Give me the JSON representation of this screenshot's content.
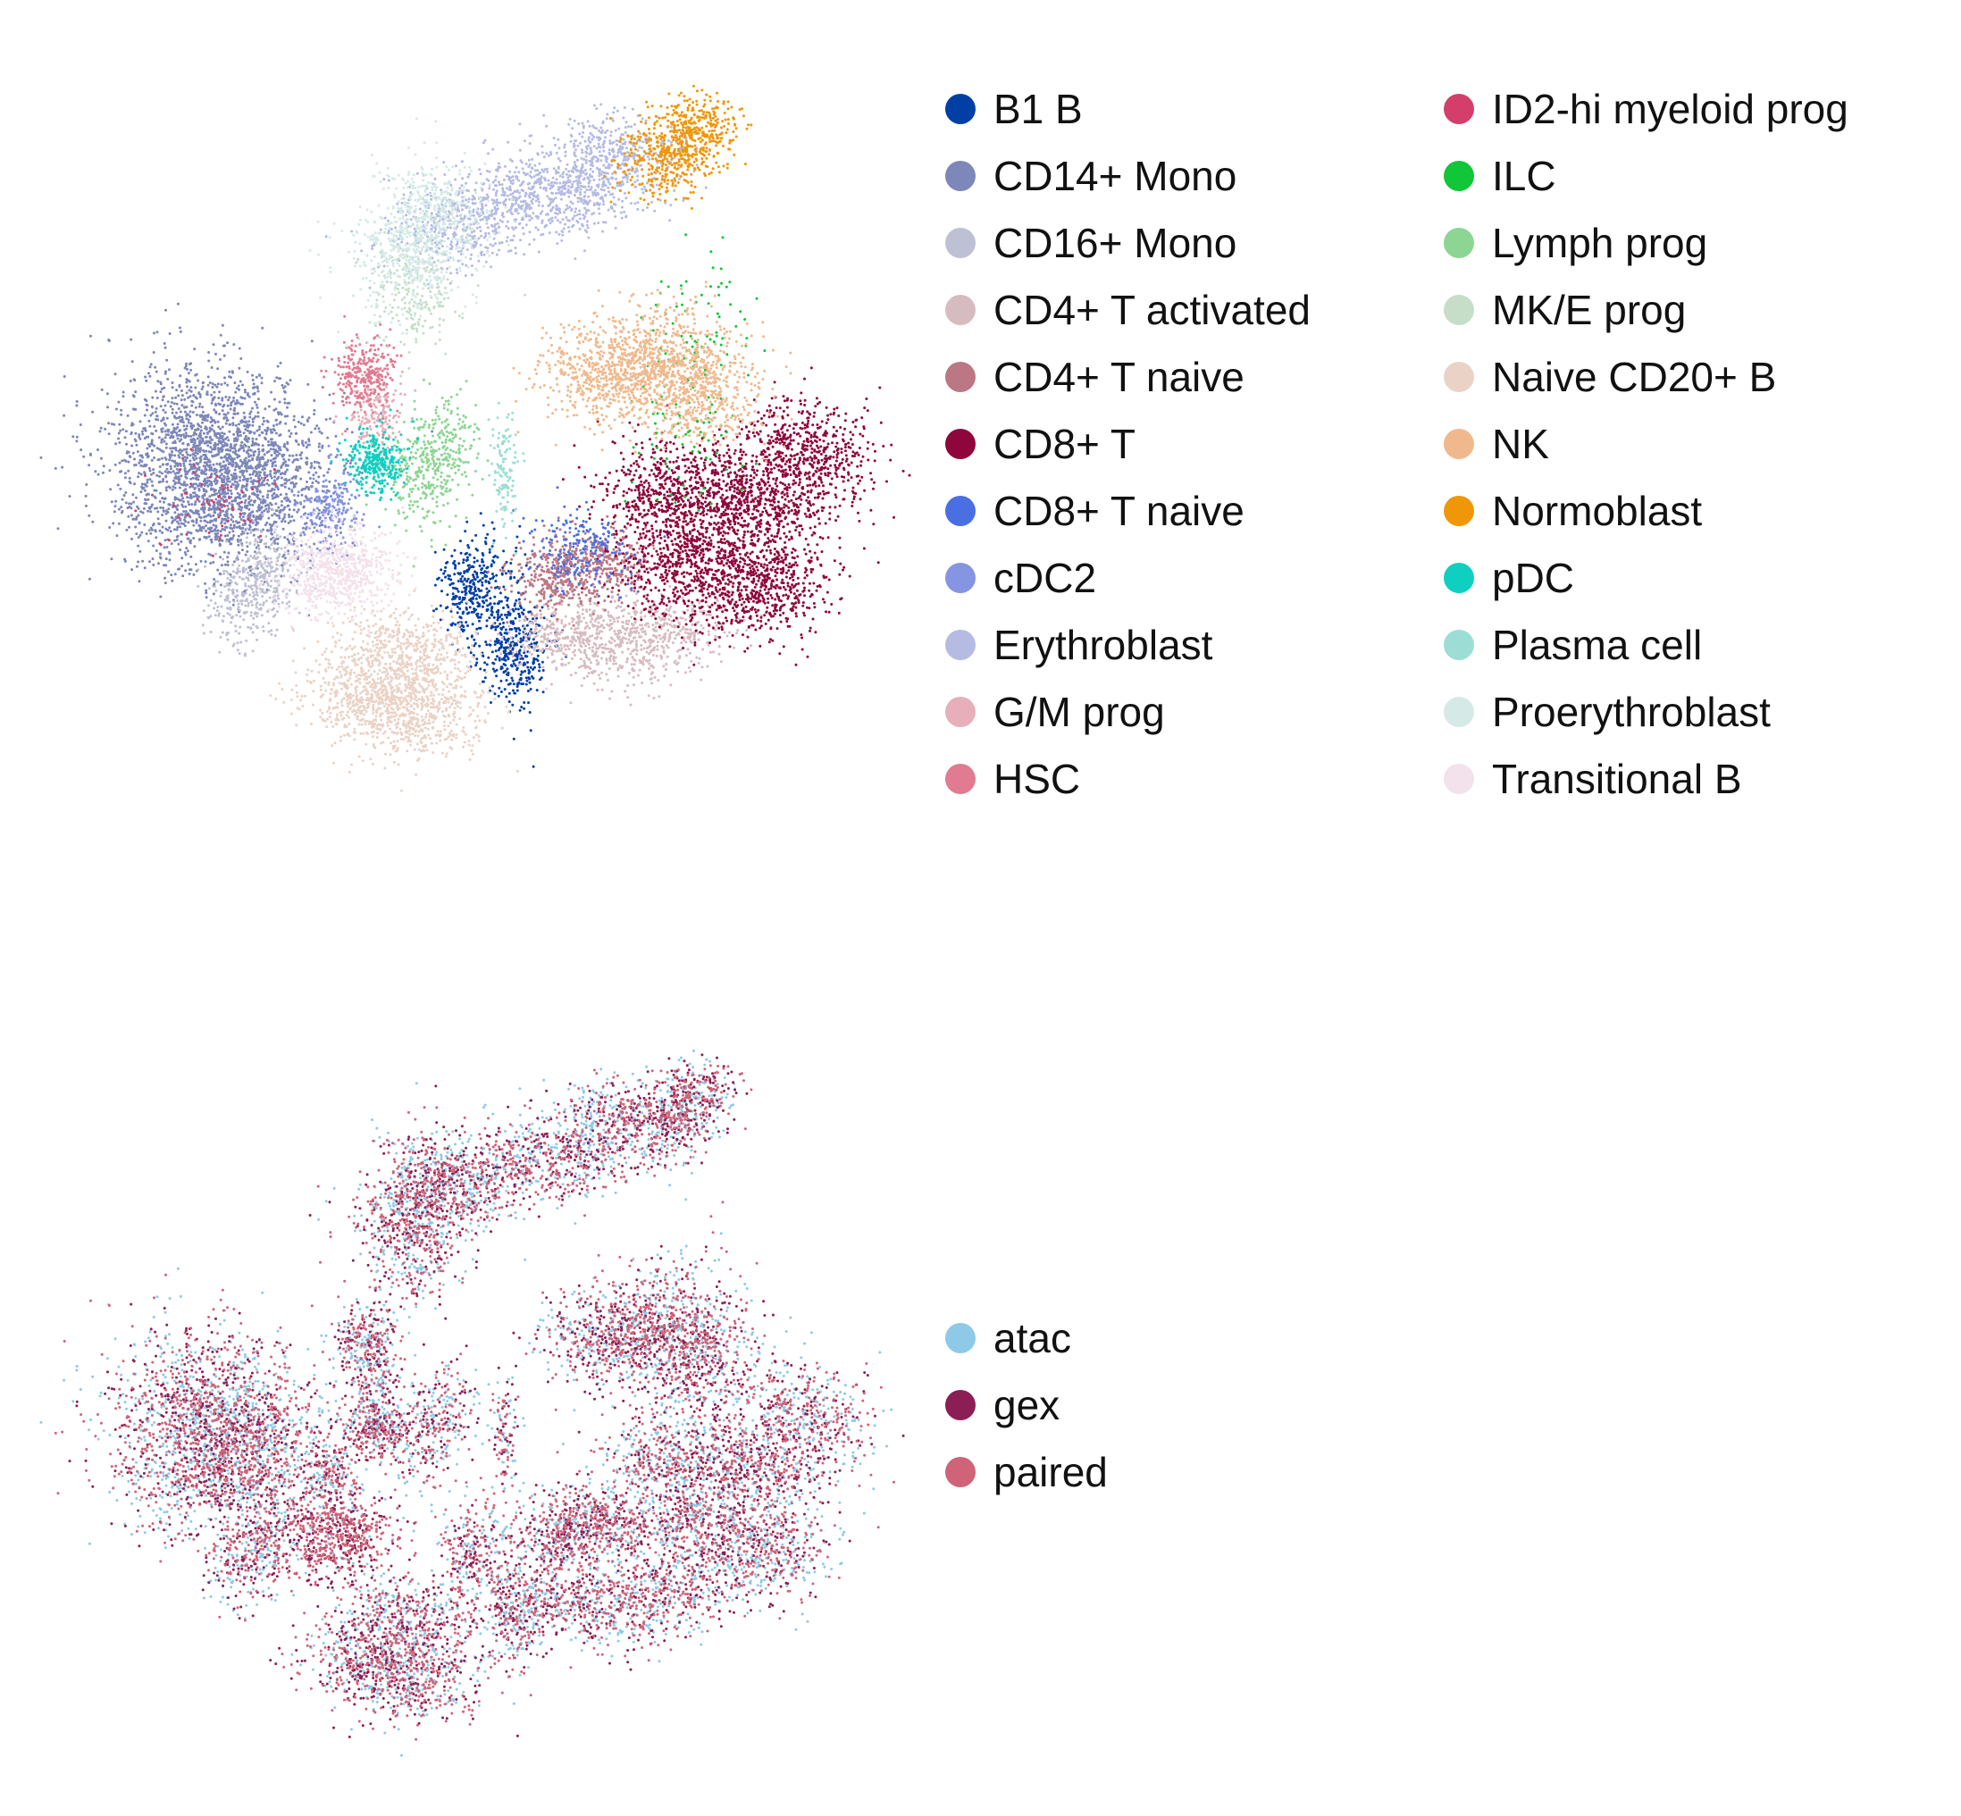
{
  "chart_data": [
    {
      "type": "scatter",
      "title": "",
      "xlabel": "",
      "ylabel": "",
      "grid": false,
      "axes_visible": false,
      "legend_placement": "right, two columns",
      "series": [
        {
          "name": "B1 B",
          "color": "#023fa5",
          "centers": [
            [
              6.55,
              5.25
            ],
            [
              5.95,
              4.35
            ]
          ],
          "spread": [
            0.28,
            0.42
          ],
          "count": 700
        },
        {
          "name": "CD14+ Mono",
          "color": "#7d87b9",
          "centers": [
            [
              1.7,
              1.8
            ],
            [
              2.3,
              2.5
            ],
            [
              1.9,
              3.0
            ]
          ],
          "spread": [
            0.8,
            0.6
          ],
          "count": 2600
        },
        {
          "name": "CD16+ Mono",
          "color": "#bec1d4",
          "centers": [
            [
              2.7,
              4.0
            ],
            [
              2.3,
              4.5
            ]
          ],
          "spread": [
            0.3,
            0.35
          ],
          "count": 420
        },
        {
          "name": "CD4+ T activated",
          "color": "#d6bcc0",
          "centers": [
            [
              7.4,
              5.0
            ],
            [
              8.2,
              5.3
            ],
            [
              9.0,
              4.9
            ]
          ],
          "spread": [
            0.5,
            0.3
          ],
          "count": 900
        },
        {
          "name": "CD4+ T naive",
          "color": "#bb7784",
          "centers": [
            [
              7.2,
              4.1
            ],
            [
              8.0,
              3.9
            ]
          ],
          "spread": [
            0.35,
            0.3
          ],
          "count": 620
        },
        {
          "name": "CD8+ T",
          "color": "#8e063b",
          "centers": [
            [
              9.0,
              2.8
            ],
            [
              10.2,
              3.0
            ],
            [
              11.1,
              2.2
            ],
            [
              10.4,
              4.2
            ],
            [
              9.3,
              4.0
            ]
          ],
          "spread": [
            0.55,
            0.45
          ],
          "count": 3000
        },
        {
          "name": "CD8+ T naive",
          "color": "#4a6fe3",
          "centers": [
            [
              7.6,
              3.7
            ]
          ],
          "spread": [
            0.4,
            0.3
          ],
          "count": 200
        },
        {
          "name": "cDC2",
          "color": "#8595e1",
          "centers": [
            [
              3.7,
              3.1
            ]
          ],
          "spread": [
            0.25,
            0.35
          ],
          "count": 220
        },
        {
          "name": "Erythroblast",
          "color": "#b5bbe3",
          "centers": [
            [
              6.5,
              -1.9
            ],
            [
              7.5,
              -2.1
            ],
            [
              8.2,
              -2.6
            ],
            [
              5.6,
              -1.4
            ]
          ],
          "spread": [
            0.55,
            0.35
          ],
          "count": 1500
        },
        {
          "name": "G/M prog",
          "color": "#e6afb9",
          "centers": [
            [
              4.4,
              1.5
            ]
          ],
          "spread": [
            0.2,
            0.3
          ],
          "count": 180
        },
        {
          "name": "HSC",
          "color": "#e07b91",
          "centers": [
            [
              4.2,
              0.9
            ]
          ],
          "spread": [
            0.25,
            0.3
          ],
          "count": 300
        },
        {
          "name": "ID2-hi myeloid prog",
          "color": "#d33f6a",
          "centers": [
            [
              1.9,
              2.9
            ]
          ],
          "spread": [
            0.5,
            0.4
          ],
          "count": 60
        },
        {
          "name": "ILC",
          "color": "#11c638",
          "centers": [
            [
              9.5,
              0.2
            ],
            [
              9.2,
              1.6
            ]
          ],
          "spread": [
            0.4,
            0.7
          ],
          "count": 160
        },
        {
          "name": "Lymph prog",
          "color": "#8dd593",
          "centers": [
            [
              5.1,
              2.6
            ],
            [
              5.5,
              2.0
            ]
          ],
          "spread": [
            0.3,
            0.4
          ],
          "count": 420
        },
        {
          "name": "MK/E prog",
          "color": "#c6dec7",
          "centers": [
            [
              5.0,
              -0.4
            ]
          ],
          "spread": [
            0.35,
            0.5
          ],
          "count": 200
        },
        {
          "name": "Naive CD20+ B",
          "color": "#ead3c6",
          "centers": [
            [
              4.3,
              6.0
            ],
            [
              5.0,
              6.3
            ],
            [
              4.8,
              5.3
            ]
          ],
          "spread": [
            0.55,
            0.35
          ],
          "count": 1500
        },
        {
          "name": "NK",
          "color": "#f0b98d",
          "centers": [
            [
              8.0,
              0.9
            ],
            [
              8.8,
              0.6
            ],
            [
              9.3,
              1.2
            ]
          ],
          "spread": [
            0.55,
            0.4
          ],
          "count": 1600
        },
        {
          "name": "Normoblast",
          "color": "#ef9708",
          "centers": [
            [
              8.9,
              -2.5
            ],
            [
              9.4,
              -3.0
            ]
          ],
          "spread": [
            0.35,
            0.3
          ],
          "count": 650
        },
        {
          "name": "pDC",
          "color": "#0fcfc0",
          "centers": [
            [
              4.4,
              2.3
            ]
          ],
          "spread": [
            0.22,
            0.25
          ],
          "count": 320
        },
        {
          "name": "Plasma cell",
          "color": "#9cded6",
          "centers": [
            [
              6.4,
              2.4
            ]
          ],
          "spread": [
            0.1,
            0.45
          ],
          "count": 120
        },
        {
          "name": "Proerythroblast",
          "color": "#d5eae7",
          "centers": [
            [
              4.9,
              -1.0
            ],
            [
              5.3,
              -1.6
            ]
          ],
          "spread": [
            0.45,
            0.5
          ],
          "count": 800
        },
        {
          "name": "Transitional B",
          "color": "#f3e1eb",
          "centers": [
            [
              3.8,
              4.0
            ]
          ],
          "spread": [
            0.45,
            0.35
          ],
          "count": 700
        }
      ]
    },
    {
      "type": "scatter",
      "title": "",
      "xlabel": "",
      "ylabel": "",
      "grid": false,
      "axes_visible": false,
      "legend_placement": "right",
      "series": [
        {
          "name": "atac",
          "color": "#8ecae8",
          "count": 5500
        },
        {
          "name": "gex",
          "color": "#8b1e54",
          "count": 4200
        },
        {
          "name": "paired",
          "color": "#cf6378",
          "count": 6000
        }
      ]
    }
  ]
}
